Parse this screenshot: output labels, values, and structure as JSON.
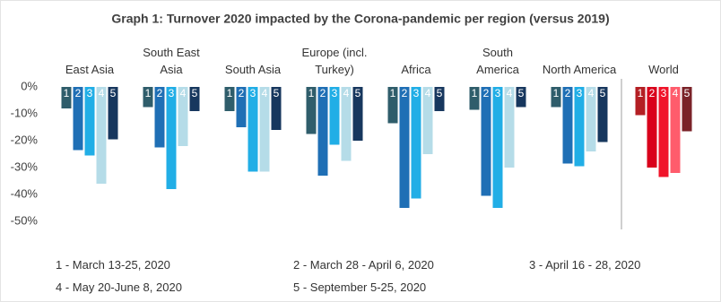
{
  "chart_data": {
    "type": "bar",
    "title": "Graph 1: Turnover 2020 impacted by the Corona-pandemic per region (versus 2019)",
    "categories": [
      "East Asia",
      "South East Asia",
      "South Asia",
      "Europe (incl. Turkey)",
      "Africa",
      "South America",
      "North America",
      "World"
    ],
    "series": [
      {
        "name": "1 - March 13-25, 2020",
        "label": "1",
        "colors": [
          "#2f5d6b",
          "#2f5d6b",
          "#2f5d6b",
          "#2f5d6b",
          "#2f5d6b",
          "#2f5d6b",
          "#2f5d6b",
          "#b41f24"
        ],
        "values": [
          -8,
          -7.5,
          -9,
          -17.5,
          -13.5,
          -8.5,
          -7.5,
          -10.5
        ]
      },
      {
        "name": "2 - March 28 - April 6, 2020",
        "label": "2",
        "colors": [
          "#1f6fb5",
          "#1f6fb5",
          "#1f6fb5",
          "#1f6fb5",
          "#1f6fb5",
          "#1f6fb5",
          "#1f6fb5",
          "#d9001b"
        ],
        "values": [
          -23.5,
          -22.5,
          -15,
          -33,
          -45,
          -40.5,
          -28.5,
          -30
        ]
      },
      {
        "name": "3 - April 16 - 28, 2020",
        "label": "3",
        "colors": [
          "#21aee6",
          "#21aee6",
          "#21aee6",
          "#21aee6",
          "#21aee6",
          "#21aee6",
          "#21aee6",
          "#f0142a"
        ],
        "values": [
          -25.5,
          -38,
          -31.5,
          -21.5,
          -41.5,
          -45,
          -29.5,
          -33.5
        ]
      },
      {
        "name": "4 - May 20-June 8, 2020",
        "label": "4",
        "colors": [
          "#b5dce8",
          "#b5dce8",
          "#b5dce8",
          "#b5dce8",
          "#b5dce8",
          "#b5dce8",
          "#b5dce8",
          "#ff5c6c"
        ],
        "values": [
          -36,
          -22,
          -31.5,
          -27.5,
          -25,
          -30,
          -24,
          -32
        ]
      },
      {
        "name": "5 - September 5-25, 2020",
        "label": "5",
        "colors": [
          "#17375e",
          "#17375e",
          "#17375e",
          "#17375e",
          "#17375e",
          "#17375e",
          "#17375e",
          "#7a2228"
        ],
        "values": [
          -19.5,
          -9,
          -16,
          -20,
          -9,
          -7.5,
          -20.5,
          -16.5
        ]
      }
    ],
    "ylim": [
      -53,
      2
    ],
    "yticks": [
      {
        "value": 0,
        "label": "0%"
      },
      {
        "value": -10,
        "label": "-10%"
      },
      {
        "value": -20,
        "label": "-20%"
      },
      {
        "value": -30,
        "label": "-30%"
      },
      {
        "value": -40,
        "label": "-40%"
      },
      {
        "value": -50,
        "label": "-50%"
      }
    ],
    "grid": false
  }
}
